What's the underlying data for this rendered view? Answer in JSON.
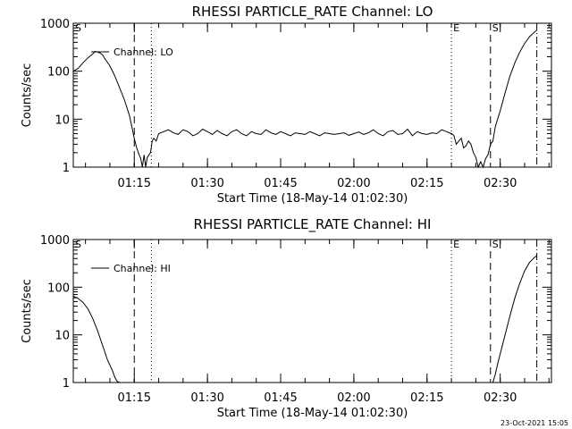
{
  "chart_data": [
    {
      "type": "line",
      "title": "RHESSI PARTICLE_RATE Channel: LO",
      "xlabel": "Start Time (18-May-14 01:02:30)",
      "ylabel": "Counts/sec",
      "yscale": "log",
      "ylim": [
        1,
        1000
      ],
      "xlim": [
        "01:02:30",
        "02:40:30"
      ],
      "x_ticks": [
        "01:15",
        "01:30",
        "01:45",
        "02:00",
        "02:15",
        "02:30"
      ],
      "y_ticks": [
        "1",
        "10",
        "100",
        "1000"
      ],
      "legend": {
        "label": "Channel: LO",
        "placement": "top-left"
      },
      "markers": [
        {
          "label": "S",
          "time": "01:02:30",
          "style": "none"
        },
        {
          "label": "",
          "time": "01:15:00",
          "style": "dashed"
        },
        {
          "label": "",
          "time": "01:18:30",
          "style": "dotted"
        },
        {
          "label": "E",
          "time": "02:20:00",
          "style": "dotted"
        },
        {
          "label": "S",
          "time": "02:28:00",
          "style": "dashed"
        },
        {
          "label": "",
          "time": "02:37:30",
          "style": "dashdot"
        }
      ],
      "series": [
        {
          "x": [
            "01:02:30",
            "01:03:30",
            "01:04:30",
            "01:05:30",
            "01:06:30",
            "01:07:00",
            "01:07:30",
            "01:08:00",
            "01:08:30",
            "01:09:00",
            "01:10:00",
            "01:11:00",
            "01:12:00",
            "01:13:00",
            "01:14:00",
            "01:14:30",
            "01:15:00",
            "01:15:30",
            "01:16:00",
            "01:16:20",
            "01:16:40",
            "01:17:00",
            "01:17:20",
            "01:17:40",
            "01:18:00",
            "01:18:20",
            "01:18:40",
            "01:19:00",
            "01:19:30",
            "01:20:00",
            "01:21:00",
            "01:22:00",
            "01:23:00",
            "01:24:00",
            "01:25:00",
            "01:26:00",
            "01:27:00",
            "01:28:00",
            "01:29:00",
            "01:30:00",
            "01:31:00",
            "01:32:00",
            "01:33:00",
            "01:34:00",
            "01:35:00",
            "01:36:00",
            "01:37:00",
            "01:38:00",
            "01:39:00",
            "01:40:00",
            "01:41:00",
            "01:42:00",
            "01:43:00",
            "01:44:00",
            "01:45:00",
            "01:46:00",
            "01:47:00",
            "01:48:00",
            "01:49:00",
            "01:50:00",
            "01:51:00",
            "01:52:00",
            "01:53:00",
            "01:54:00",
            "01:55:00",
            "01:56:00",
            "01:57:00",
            "01:58:00",
            "01:59:00",
            "02:00:00",
            "02:01:00",
            "02:02:00",
            "02:03:00",
            "02:04:00",
            "02:05:00",
            "02:06:00",
            "02:07:00",
            "02:08:00",
            "02:09:00",
            "02:10:00",
            "02:11:00",
            "02:12:00",
            "02:13:00",
            "02:14:00",
            "02:15:00",
            "02:16:00",
            "02:17:00",
            "02:18:00",
            "02:19:00",
            "02:20:00",
            "02:20:30",
            "02:21:00",
            "02:21:30",
            "02:22:00",
            "02:22:30",
            "02:23:00",
            "02:23:30",
            "02:24:00",
            "02:24:30",
            "02:25:00",
            "02:25:30",
            "02:26:00",
            "02:26:30",
            "02:27:00",
            "02:27:30",
            "02:28:00",
            "02:28:30",
            "02:29:00",
            "02:30:00",
            "02:31:00",
            "02:32:00",
            "02:33:00",
            "02:34:00",
            "02:35:00",
            "02:36:00",
            "02:37:00",
            "02:37:30"
          ],
          "y": [
            100,
            115,
            150,
            190,
            230,
            260,
            250,
            240,
            220,
            180,
            130,
            80,
            45,
            25,
            12,
            7,
            4,
            2.5,
            1.8,
            1.5,
            1,
            1.8,
            1,
            1.6,
            1.8,
            2,
            3.5,
            4,
            3.5,
            5,
            5.5,
            6,
            5.2,
            4.8,
            6,
            5.5,
            4.5,
            5,
            6.2,
            5.5,
            4.8,
            5.8,
            5,
            4.5,
            5.5,
            6,
            5,
            4.5,
            5.5,
            5,
            4.8,
            6,
            5.2,
            4.8,
            5.5,
            5,
            4.5,
            5.2,
            5,
            4.8,
            5.5,
            5,
            4.5,
            5.2,
            5,
            4.8,
            5,
            5.2,
            4.6,
            5,
            5.4,
            4.8,
            5.2,
            6,
            5,
            4.5,
            5.5,
            5.8,
            4.8,
            5,
            6.2,
            4.5,
            5.5,
            5,
            4.8,
            5.2,
            5,
            6,
            5.5,
            5,
            4.6,
            3,
            3.5,
            4,
            2.5,
            2.8,
            3.5,
            3,
            2,
            1.6,
            1,
            1.3,
            1,
            1.5,
            1.8,
            3,
            3.5,
            7,
            15,
            35,
            80,
            150,
            250,
            380,
            520,
            650,
            720
          ]
        }
      ]
    },
    {
      "type": "line",
      "title": "RHESSI PARTICLE_RATE Channel: HI",
      "xlabel": "Start Time (18-May-14 01:02:30)",
      "ylabel": "Counts/sec",
      "yscale": "log",
      "ylim": [
        1,
        1000
      ],
      "xlim": [
        "01:02:30",
        "02:40:30"
      ],
      "x_ticks": [
        "01:15",
        "01:30",
        "01:45",
        "02:00",
        "02:15",
        "02:30"
      ],
      "y_ticks": [
        "1",
        "10",
        "100",
        "1000"
      ],
      "legend": {
        "label": "Channel: HI",
        "placement": "top-left"
      },
      "markers": [
        {
          "label": "S",
          "time": "01:02:30",
          "style": "none"
        },
        {
          "label": "",
          "time": "01:15:00",
          "style": "dashed"
        },
        {
          "label": "",
          "time": "01:18:30",
          "style": "dotted"
        },
        {
          "label": "E",
          "time": "02:20:00",
          "style": "dotted"
        },
        {
          "label": "S",
          "time": "02:28:00",
          "style": "dashed"
        },
        {
          "label": "",
          "time": "02:37:30",
          "style": "dashdot"
        }
      ],
      "series": [
        {
          "x": [
            "01:02:30",
            "01:03:30",
            "01:04:30",
            "01:05:30",
            "01:06:30",
            "01:07:30",
            "01:08:30",
            "01:09:30",
            "01:10:30",
            "01:11:00",
            "01:11:30",
            "01:12:00",
            "02:28:30",
            "02:29:00",
            "02:29:30",
            "02:30:00",
            "02:31:00",
            "02:32:00",
            "02:33:00",
            "02:34:00",
            "02:35:00",
            "02:36:00",
            "02:37:00",
            "02:37:30"
          ],
          "y": [
            65,
            58,
            48,
            35,
            22,
            12,
            6,
            3,
            1.8,
            1.3,
            1.05,
            1,
            1,
            1.5,
            2.5,
            4,
            10,
            25,
            60,
            120,
            220,
            330,
            420,
            460
          ],
          "breaks": [
            12
          ]
        }
      ]
    }
  ],
  "footer": {
    "timestamp": "23-Oct-2021 15:05"
  }
}
